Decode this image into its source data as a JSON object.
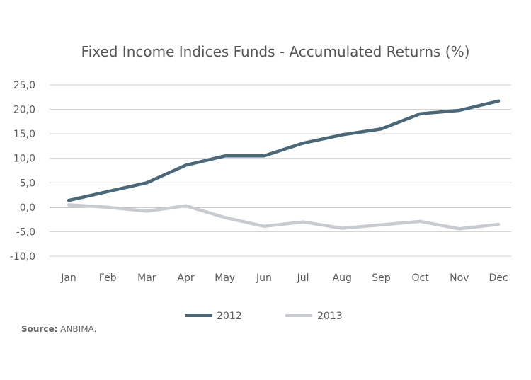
{
  "colors": {
    "series_2012": "#4a6878",
    "series_2013": "#c8ccd0",
    "grid": "#cfcfcf",
    "zero_line": "#a8a8a8"
  },
  "source": {
    "label": "Source:",
    "text": "ANBIMA."
  },
  "chart_data": {
    "type": "line",
    "title": "Fixed Income Indices Funds - Accumulated Returns (%)",
    "xlabel": "",
    "ylabel": "",
    "categories": [
      "Jan",
      "Feb",
      "Mar",
      "Apr",
      "May",
      "Jun",
      "Jul",
      "Aug",
      "Sep",
      "Oct",
      "Nov",
      "Dec"
    ],
    "ylim": [
      -10,
      25
    ],
    "yticks": [
      "25,0",
      "20,0",
      "15,0",
      "10,0",
      "5,0",
      "0,0",
      "-5,0",
      "-10,0"
    ],
    "ytick_values": [
      25,
      20,
      15,
      10,
      5,
      0,
      -5,
      -10
    ],
    "grid": true,
    "legend_position": "bottom",
    "series": [
      {
        "name": "2012",
        "values": [
          1.4,
          3.2,
          5.0,
          8.6,
          10.5,
          10.5,
          13.1,
          14.8,
          16.0,
          19.1,
          19.8,
          21.7
        ]
      },
      {
        "name": "2013",
        "values": [
          0.5,
          0.0,
          -0.8,
          0.3,
          -2.1,
          -3.9,
          -3.0,
          -4.3,
          -3.6,
          -2.9,
          -4.4,
          -3.5
        ]
      }
    ]
  }
}
